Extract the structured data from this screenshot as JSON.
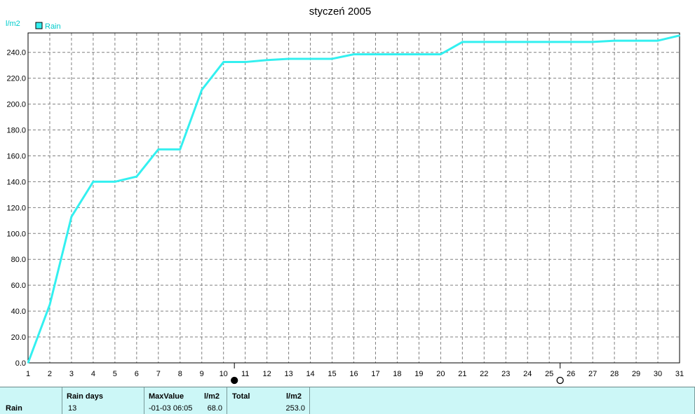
{
  "chart_data": {
    "type": "line",
    "title": "styczeń 2005",
    "ylabel": "l/m2",
    "legend": {
      "label": "Rain",
      "color": "#33f0f0",
      "placement": "top-left"
    },
    "ylim": [
      0,
      255
    ],
    "xlim": [
      1,
      31
    ],
    "y_ticks": [
      "0.0",
      "20.0",
      "40.0",
      "60.0",
      "80.0",
      "100.0",
      "120.0",
      "140.0",
      "160.0",
      "180.0",
      "200.0",
      "220.0",
      "240.0"
    ],
    "x_ticks": [
      "1",
      "2",
      "3",
      "4",
      "5",
      "6",
      "7",
      "8",
      "9",
      "10",
      "11",
      "12",
      "13",
      "14",
      "15",
      "16",
      "17",
      "18",
      "19",
      "20",
      "21",
      "22",
      "23",
      "24",
      "25",
      "26",
      "27",
      "28",
      "29",
      "30",
      "31"
    ],
    "grid": true,
    "series": [
      {
        "name": "Rain",
        "color": "#33f0f0",
        "x": [
          1,
          2,
          3,
          4,
          5,
          6,
          7,
          8,
          9,
          10,
          11,
          12,
          13,
          14,
          15,
          16,
          17,
          18,
          19,
          20,
          21,
          22,
          23,
          24,
          25,
          26,
          27,
          28,
          29,
          30,
          31
        ],
        "y": [
          0,
          45,
          113,
          140,
          140,
          144,
          165,
          165,
          211,
          232.5,
          232.5,
          234,
          235,
          235,
          235,
          238.5,
          238.5,
          238.5,
          238.5,
          238.5,
          248,
          248,
          248,
          248,
          248,
          248,
          248,
          249,
          249,
          249,
          253
        ]
      }
    ],
    "moon_markers": [
      {
        "phase": "full",
        "x": 10.5
      },
      {
        "phase": "new",
        "x": 25.5
      }
    ]
  },
  "summary": {
    "row_label": "Rain",
    "rain_days_label": "Rain days",
    "rain_days_value": "13",
    "maxvalue_label": "MaxValue",
    "maxvalue_unit": "l/m2",
    "maxvalue_date": "-01-03  06:05",
    "maxvalue_value": "68.0",
    "total_label": "Total",
    "total_unit": "l/m2",
    "total_value": "253.0"
  }
}
